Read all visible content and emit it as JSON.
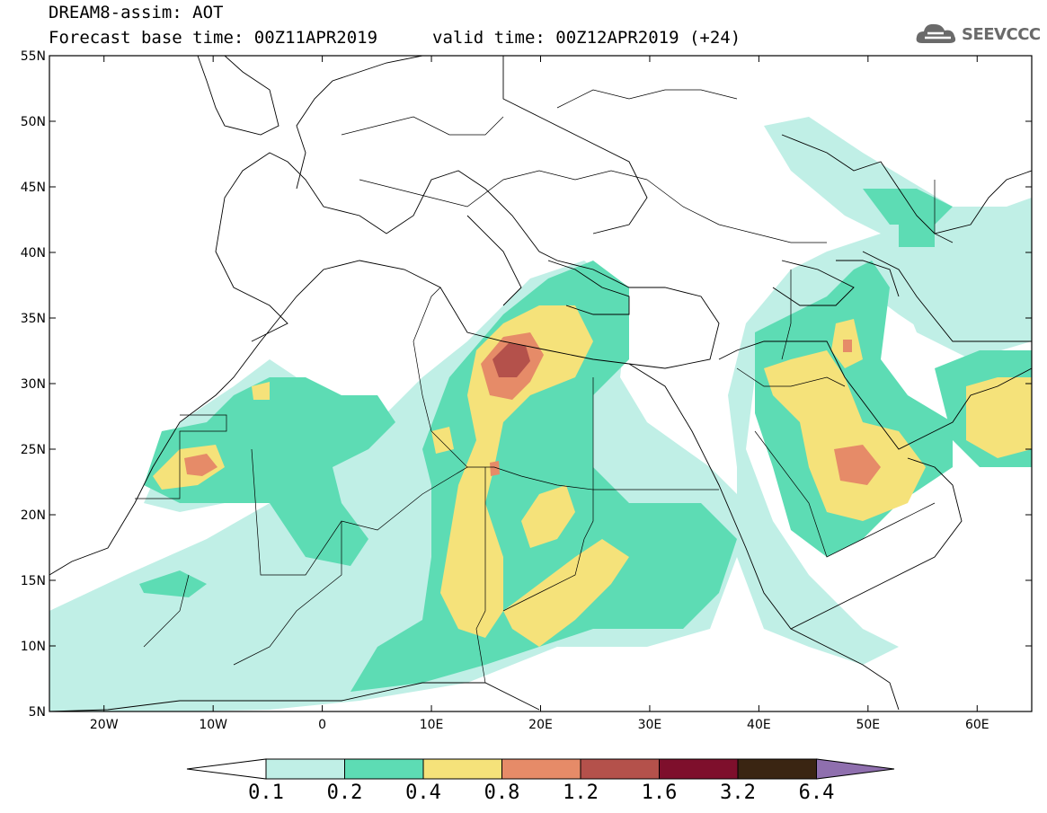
{
  "header": {
    "title": "DREAM8-assim: AOT",
    "base_time": "Forecast base time: 00Z11APR2019",
    "valid_time": "valid time: 00Z12APR2019 (+24)",
    "logo_text": "SEEVCCC"
  },
  "map": {
    "variable": "AOT",
    "lon_range": [
      -25,
      65
    ],
    "lat_range": [
      5,
      55
    ],
    "lat_ticks": [
      "55N",
      "50N",
      "45N",
      "40N",
      "35N",
      "30N",
      "25N",
      "20N",
      "15N",
      "10N",
      "5N"
    ],
    "lon_ticks": [
      "20W",
      "10W",
      "0",
      "10E",
      "20E",
      "30E",
      "40E",
      "50E",
      "60E"
    ]
  },
  "colorbar": {
    "levels": [
      "0.1",
      "0.2",
      "0.4",
      "0.8",
      "1.2",
      "1.6",
      "3.2",
      "6.4"
    ],
    "colors": [
      "#ffffff",
      "#c0efe6",
      "#5ddcb4",
      "#f5e27a",
      "#e68b68",
      "#b4514b",
      "#7e0f2c",
      "#3a2512",
      "#8f6fae"
    ]
  }
}
